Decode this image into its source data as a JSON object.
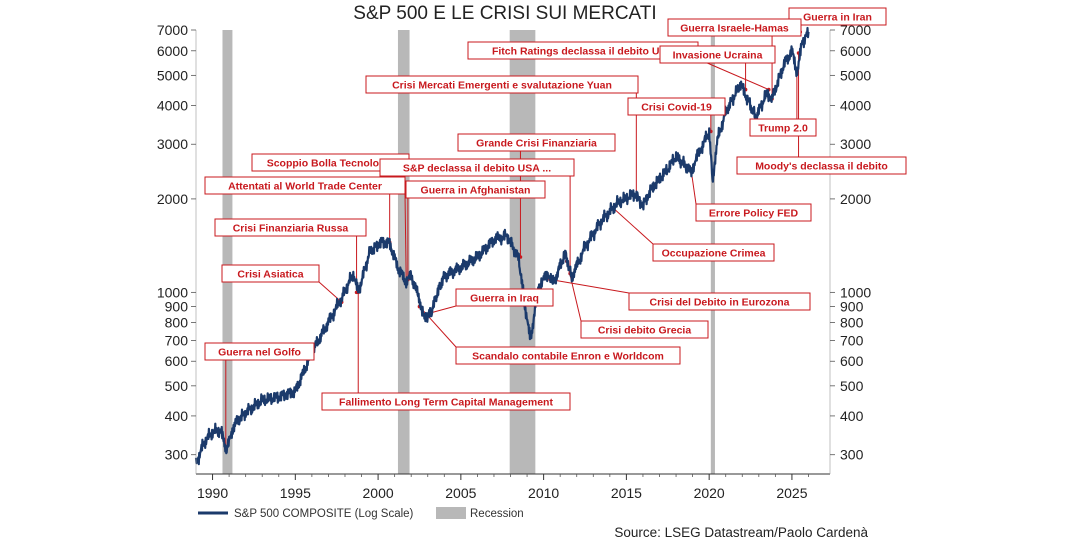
{
  "chart_data": {
    "type": "line",
    "title": "S&P 500 E LE CRISI SUI MERCATI",
    "y_scale": "log",
    "ylim": [
      260,
      7000
    ],
    "xlim": [
      1989.0,
      2027.3
    ],
    "y_ticks": [
      300,
      400,
      500,
      600,
      700,
      800,
      900,
      1000,
      2000,
      3000,
      4000,
      5000,
      6000,
      7000
    ],
    "x_ticks": [
      1990,
      1995,
      2000,
      2005,
      2010,
      2015,
      2020,
      2025
    ],
    "series": [
      {
        "name": "S&P 500 COMPOSITE (Log Scale)",
        "color": "#1b3a6b",
        "x": [
          1989.0,
          1989.5,
          1990.0,
          1990.5,
          1990.8,
          1991.0,
          1991.3,
          1992.0,
          1993.0,
          1994.0,
          1995.0,
          1996.0,
          1997.0,
          1997.8,
          1998.5,
          1998.8,
          1999.5,
          2000.2,
          2000.7,
          2001.2,
          2001.7,
          2002.0,
          2002.5,
          2002.8,
          2003.2,
          2003.6,
          2004.0,
          2005.0,
          2006.0,
          2007.0,
          2007.8,
          2008.5,
          2008.9,
          2009.2,
          2009.7,
          2010.3,
          2010.6,
          2011.3,
          2011.7,
          2012.5,
          2013.5,
          2014.5,
          2015.5,
          2016.0,
          2016.5,
          2017.5,
          2018.0,
          2018.9,
          2019.5,
          2020.0,
          2020.2,
          2020.5,
          2021.0,
          2021.9,
          2022.4,
          2022.8,
          2023.5,
          2023.8,
          2024.5,
          2025.0,
          2025.3,
          2025.6,
          2026.0
        ],
        "values": [
          280,
          330,
          355,
          360,
          310,
          330,
          375,
          410,
          450,
          460,
          480,
          640,
          800,
          960,
          1150,
          1000,
          1350,
          1450,
          1440,
          1200,
          1080,
          1130,
          950,
          820,
          860,
          1000,
          1130,
          1200,
          1300,
          1480,
          1520,
          1280,
          880,
          700,
          1050,
          1150,
          1070,
          1340,
          1120,
          1400,
          1700,
          1950,
          2080,
          1900,
          2150,
          2500,
          2750,
          2450,
          2900,
          3300,
          2300,
          3100,
          3800,
          4700,
          4100,
          3650,
          4400,
          4200,
          5400,
          6000,
          5100,
          6300,
          6900
        ]
      },
      {
        "name": "Recession",
        "color": "#b8b8b8",
        "periods": [
          [
            1990.6,
            1991.2
          ],
          [
            2001.2,
            2001.9
          ],
          [
            2007.95,
            2009.5
          ],
          [
            2020.1,
            2020.35
          ]
        ]
      }
    ],
    "annotations": [
      {
        "text": "Guerra in Iran",
        "date": 2025.5,
        "value": 6900
      },
      {
        "text": "Guerra Israele-Hamas",
        "date": 2023.8,
        "value": 4200
      },
      {
        "text": "Fitch Ratings declassa il debito USA",
        "date": 2023.6,
        "value": 4500
      },
      {
        "text": "Invasione Ucraina",
        "date": 2022.2,
        "value": 4500
      },
      {
        "text": "Crisi Mercati Emergenti e svalutazione Yuan",
        "date": 2015.6,
        "value": 2050
      },
      {
        "text": "Crisi Covid-19",
        "date": 2020.1,
        "value": 3300
      },
      {
        "text": "Trump 2.0",
        "date": 2025.3,
        "value": 5200
      },
      {
        "text": "Grande Crisi Finanziaria",
        "date": 2008.6,
        "value": 1300
      },
      {
        "text": "Scoppio Bolla Tecnologia",
        "date": 2000.7,
        "value": 1450
      },
      {
        "text": "S&P declassa il debito USA ...",
        "date": 2011.6,
        "value": 1150
      },
      {
        "text": "Moody's declassa il debito",
        "date": 2025.4,
        "value": 5900
      },
      {
        "text": "Attentati al World Trade Center",
        "date": 2001.7,
        "value": 1080
      },
      {
        "text": "Guerra in Afghanistan",
        "date": 2001.8,
        "value": 1100
      },
      {
        "text": "Errore Policy FED",
        "date": 2018.9,
        "value": 2500
      },
      {
        "text": "Crisi Finanziaria Russa",
        "date": 1998.7,
        "value": 1000
      },
      {
        "text": "Occupazione Crimea",
        "date": 2014.2,
        "value": 1870
      },
      {
        "text": "Crisi Asiatica",
        "date": 1997.8,
        "value": 930
      },
      {
        "text": "Guerra in Iraq",
        "date": 2003.2,
        "value": 860
      },
      {
        "text": "Crisi del Debito in Eurozona",
        "date": 2010.4,
        "value": 1100
      },
      {
        "text": "Crisi debito Grecia",
        "date": 2011.4,
        "value": 1260
      },
      {
        "text": "Scandalo contabile Enron e Worldcom",
        "date": 2002.5,
        "value": 900
      },
      {
        "text": "Guerra nel Golfo",
        "date": 1990.8,
        "value": 315
      },
      {
        "text": "Fallimento Long Term Capital Management",
        "date": 1998.8,
        "value": 1000
      }
    ]
  },
  "legend": {
    "series_label": "S&P 500 COMPOSITE (Log Scale)",
    "recession_label": "Recession"
  },
  "source": "Source: LSEG Datastream/Paolo Cardenà"
}
